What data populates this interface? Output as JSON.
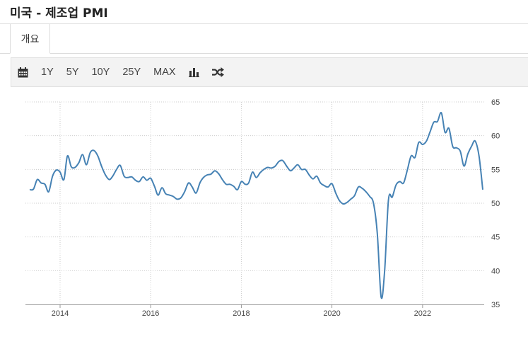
{
  "page": {
    "title": "미국 - 제조업 PMI"
  },
  "tabs": [
    {
      "label": "개요",
      "active": true
    }
  ],
  "toolbar": {
    "calendar_icon": "calendar-icon",
    "ranges": [
      "1Y",
      "5Y",
      "10Y",
      "25Y",
      "MAX"
    ],
    "bar_chart_icon": "bar-chart-icon",
    "shuffle_icon": "shuffle-icon"
  },
  "colors": {
    "line": "#4682b4",
    "grid": "#cccccc",
    "axis": "#999999"
  },
  "chart_data": {
    "type": "line",
    "title": "",
    "xlabel": "",
    "ylabel": "",
    "y_axis_side": "right",
    "ylim": [
      35,
      65
    ],
    "yticks": [
      35,
      40,
      45,
      50,
      55,
      60,
      65
    ],
    "xlim": [
      "2013-05-01",
      "2023-05-01"
    ],
    "xticks": [
      {
        "date": "2014-01-01",
        "label": "2014"
      },
      {
        "date": "2016-01-01",
        "label": "2016"
      },
      {
        "date": "2018-01-01",
        "label": "2018"
      },
      {
        "date": "2020-01-01",
        "label": "2020"
      },
      {
        "date": "2022-01-01",
        "label": "2022"
      }
    ],
    "grid": true,
    "series": [
      {
        "points": [
          [
            "2013-05-01",
            52.0
          ],
          [
            "2013-06-01",
            52.1
          ],
          [
            "2013-07-01",
            53.5
          ],
          [
            "2013-08-01",
            53.0
          ],
          [
            "2013-09-01",
            52.8
          ],
          [
            "2013-10-01",
            51.7
          ],
          [
            "2013-11-01",
            54.0
          ],
          [
            "2013-12-01",
            54.9
          ],
          [
            "2014-01-01",
            54.6
          ],
          [
            "2014-02-01",
            53.5
          ],
          [
            "2014-03-01",
            57.0
          ],
          [
            "2014-04-01",
            55.4
          ],
          [
            "2014-05-01",
            55.3
          ],
          [
            "2014-06-01",
            56.0
          ],
          [
            "2014-07-01",
            57.2
          ],
          [
            "2014-08-01",
            55.7
          ],
          [
            "2014-09-01",
            57.5
          ],
          [
            "2014-10-01",
            57.8
          ],
          [
            "2014-11-01",
            57.0
          ],
          [
            "2014-12-01",
            55.5
          ],
          [
            "2015-01-01",
            54.2
          ],
          [
            "2015-02-01",
            53.5
          ],
          [
            "2015-03-01",
            54.0
          ],
          [
            "2015-04-01",
            55.0
          ],
          [
            "2015-05-01",
            55.6
          ],
          [
            "2015-06-01",
            54.0
          ],
          [
            "2015-07-01",
            53.8
          ],
          [
            "2015-08-01",
            53.9
          ],
          [
            "2015-09-01",
            53.4
          ],
          [
            "2015-10-01",
            53.2
          ],
          [
            "2015-11-01",
            53.9
          ],
          [
            "2015-12-01",
            53.4
          ],
          [
            "2016-01-01",
            53.7
          ],
          [
            "2016-02-01",
            52.5
          ],
          [
            "2016-03-01",
            51.2
          ],
          [
            "2016-04-01",
            52.3
          ],
          [
            "2016-05-01",
            51.4
          ],
          [
            "2016-06-01",
            51.2
          ],
          [
            "2016-07-01",
            51.0
          ],
          [
            "2016-08-01",
            50.6
          ],
          [
            "2016-09-01",
            50.8
          ],
          [
            "2016-10-01",
            51.7
          ],
          [
            "2016-11-01",
            53.0
          ],
          [
            "2016-12-01",
            52.4
          ],
          [
            "2017-01-01",
            51.5
          ],
          [
            "2017-02-01",
            53.0
          ],
          [
            "2017-03-01",
            53.8
          ],
          [
            "2017-04-01",
            54.2
          ],
          [
            "2017-05-01",
            54.3
          ],
          [
            "2017-06-01",
            54.8
          ],
          [
            "2017-07-01",
            54.4
          ],
          [
            "2017-08-01",
            53.5
          ],
          [
            "2017-09-01",
            52.8
          ],
          [
            "2017-10-01",
            52.8
          ],
          [
            "2017-11-01",
            52.5
          ],
          [
            "2017-12-01",
            52.0
          ],
          [
            "2018-01-01",
            53.2
          ],
          [
            "2018-02-01",
            52.8
          ],
          [
            "2018-03-01",
            53.0
          ],
          [
            "2018-04-01",
            54.6
          ],
          [
            "2018-05-01",
            53.8
          ],
          [
            "2018-06-01",
            54.5
          ],
          [
            "2018-07-01",
            55.0
          ],
          [
            "2018-08-01",
            55.3
          ],
          [
            "2018-09-01",
            55.2
          ],
          [
            "2018-10-01",
            55.5
          ],
          [
            "2018-11-01",
            56.2
          ],
          [
            "2018-12-01",
            56.3
          ],
          [
            "2019-01-01",
            55.5
          ],
          [
            "2019-02-01",
            54.8
          ],
          [
            "2019-03-01",
            55.2
          ],
          [
            "2019-04-01",
            55.7
          ],
          [
            "2019-05-01",
            55.0
          ],
          [
            "2019-06-01",
            55.0
          ],
          [
            "2019-07-01",
            54.2
          ],
          [
            "2019-08-01",
            53.6
          ],
          [
            "2019-09-01",
            54.0
          ],
          [
            "2019-10-01",
            53.0
          ],
          [
            "2019-11-01",
            52.6
          ],
          [
            "2019-12-01",
            52.4
          ],
          [
            "2020-01-01",
            52.9
          ],
          [
            "2020-02-01",
            51.5
          ],
          [
            "2020-03-01",
            50.4
          ],
          [
            "2020-04-01",
            49.9
          ],
          [
            "2020-05-01",
            50.1
          ],
          [
            "2020-06-01",
            50.6
          ],
          [
            "2020-07-01",
            51.1
          ],
          [
            "2020-08-01",
            52.4
          ],
          [
            "2020-09-01",
            52.2
          ],
          [
            "2020-10-01",
            51.7
          ],
          [
            "2020-11-01",
            51.0
          ],
          [
            "2020-12-01",
            50.0
          ],
          [
            "2021-01-01",
            45.5
          ],
          [
            "2021-02-01",
            36.1
          ],
          [
            "2021-03-01",
            40.0
          ],
          [
            "2021-04-01",
            50.5
          ],
          [
            "2021-05-01",
            50.9
          ],
          [
            "2021-06-01",
            52.7
          ],
          [
            "2021-07-01",
            53.2
          ],
          [
            "2021-08-01",
            53.0
          ],
          [
            "2021-09-01",
            55.0
          ],
          [
            "2021-10-01",
            57.0
          ],
          [
            "2021-11-01",
            56.8
          ],
          [
            "2021-12-01",
            59.0
          ],
          [
            "2022-01-01",
            58.7
          ],
          [
            "2022-02-01",
            59.2
          ],
          [
            "2022-03-01",
            60.5
          ],
          [
            "2022-04-01",
            62.0
          ],
          [
            "2022-05-01",
            62.1
          ],
          [
            "2022-06-01",
            63.4
          ],
          [
            "2022-07-01",
            60.5
          ],
          [
            "2022-08-01",
            61.1
          ],
          [
            "2022-09-01",
            58.4
          ],
          [
            "2022-10-01",
            58.2
          ],
          [
            "2022-11-01",
            57.7
          ],
          [
            "2022-12-01",
            55.5
          ],
          [
            "2023-01-01",
            57.3
          ],
          [
            "2023-02-01",
            58.5
          ],
          [
            "2023-03-01",
            59.2
          ],
          [
            "2023-04-01",
            57.0
          ],
          [
            "2023-05-01",
            52.0
          ]
        ]
      }
    ]
  }
}
